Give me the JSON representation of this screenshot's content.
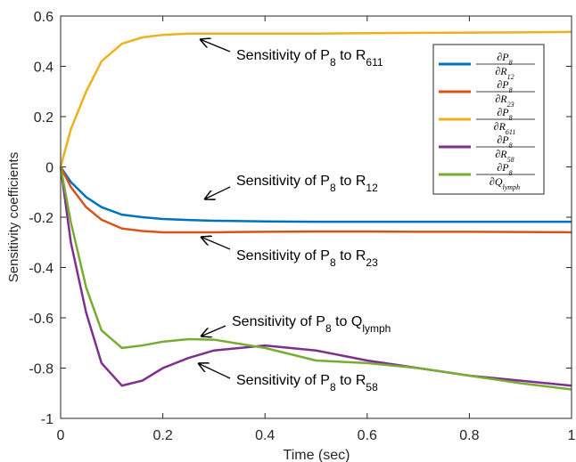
{
  "chart_data": {
    "type": "line",
    "xlabel": "Time (sec)",
    "ylabel": "Sensitivity coefficients",
    "x": [
      0,
      0.02,
      0.05,
      0.08,
      0.12,
      0.16,
      0.2,
      0.25,
      0.3,
      0.4,
      0.5,
      0.6,
      0.7,
      0.8,
      0.9,
      1
    ],
    "xlim": [
      0,
      1
    ],
    "xticks": [
      0,
      0.2,
      0.4,
      0.6,
      0.8,
      1
    ],
    "ylim": [
      -1,
      0.6
    ],
    "yticks": [
      -1,
      -0.8,
      -0.6,
      -0.4,
      -0.2,
      0,
      0.2,
      0.4,
      0.6
    ],
    "legend_position": "upper right",
    "series": [
      {
        "legend_label": {
          "numerator": [
            "∂P",
            "8"
          ],
          "denominator": [
            "∂R",
            "12"
          ]
        },
        "color": "#0072bd",
        "values": [
          0,
          -0.06,
          -0.12,
          -0.16,
          -0.19,
          -0.2,
          -0.207,
          -0.211,
          -0.214,
          -0.217,
          -0.218,
          -0.218,
          -0.218,
          -0.218,
          -0.218,
          -0.218
        ]
      },
      {
        "legend_label": {
          "numerator": [
            "∂P",
            "8"
          ],
          "denominator": [
            "∂R",
            "23"
          ]
        },
        "color": "#d95319",
        "values": [
          0,
          -0.08,
          -0.16,
          -0.21,
          -0.245,
          -0.255,
          -0.26,
          -0.26,
          -0.26,
          -0.258,
          -0.257,
          -0.257,
          -0.258,
          -0.258,
          -0.259,
          -0.26
        ]
      },
      {
        "legend_label": {
          "numerator": [
            "∂P",
            "8"
          ],
          "denominator": [
            "∂R",
            "611"
          ]
        },
        "color": "#edb120",
        "values": [
          0,
          0.15,
          0.3,
          0.42,
          0.49,
          0.515,
          0.525,
          0.53,
          0.53,
          0.53,
          0.53,
          0.532,
          0.533,
          0.534,
          0.535,
          0.537
        ]
      },
      {
        "legend_label": {
          "numerator": [
            "∂P",
            "8"
          ],
          "denominator": [
            "∂R",
            "58"
          ]
        },
        "color": "#7e2f8e",
        "values": [
          0,
          -0.3,
          -0.58,
          -0.78,
          -0.87,
          -0.85,
          -0.8,
          -0.76,
          -0.73,
          -0.71,
          -0.73,
          -0.77,
          -0.8,
          -0.83,
          -0.85,
          -0.87
        ]
      },
      {
        "legend_label": {
          "numerator": [
            "∂P",
            "8"
          ],
          "denominator": [
            "∂Q",
            "lymph"
          ]
        },
        "color": "#77ac30",
        "values": [
          0,
          -0.22,
          -0.48,
          -0.65,
          -0.72,
          -0.71,
          -0.695,
          -0.685,
          -0.687,
          -0.72,
          -0.77,
          -0.78,
          -0.8,
          -0.83,
          -0.86,
          -0.885
        ]
      }
    ],
    "annotations": [
      {
        "parts": [
          "Sensitivity of P",
          "8",
          " to R",
          "611"
        ]
      },
      {
        "parts": [
          "Sensitivity of P",
          "8",
          " to R",
          "12"
        ]
      },
      {
        "parts": [
          "Sensitivity of P",
          "8",
          " to R",
          "23"
        ]
      },
      {
        "parts": [
          "Sensitivity of P",
          "8",
          " to Q",
          "lymph"
        ]
      },
      {
        "parts": [
          "Sensitivity of P",
          "8",
          " to R",
          "58"
        ]
      }
    ]
  }
}
